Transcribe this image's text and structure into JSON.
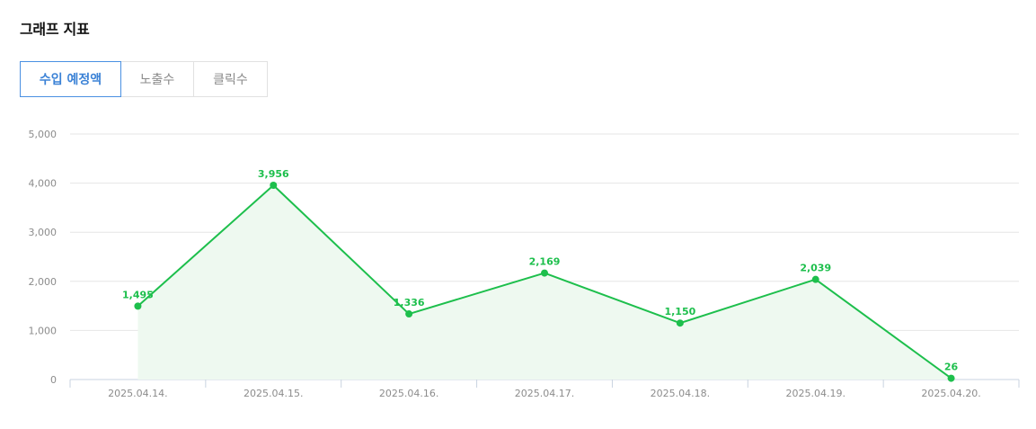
{
  "header": {
    "title": "그래프 지표"
  },
  "tabs": [
    {
      "label": "수입 예정액",
      "active": true
    },
    {
      "label": "노출수",
      "active": false
    },
    {
      "label": "클릭수",
      "active": false
    }
  ],
  "colors": {
    "series": "#1dbf4c",
    "area_fill": "#eef9f0",
    "grid": "#e6e6e6",
    "axis_text": "#8c8c8c",
    "tab_active": "#4a90e2"
  },
  "chart_data": {
    "type": "line",
    "title": "",
    "xlabel": "",
    "ylabel": "",
    "categories": [
      "2025.04.14.",
      "2025.04.15.",
      "2025.04.16.",
      "2025.04.17.",
      "2025.04.18.",
      "2025.04.19.",
      "2025.04.20."
    ],
    "series": [
      {
        "values": [
          1495,
          3956,
          1336,
          2169,
          1150,
          2039,
          26
        ],
        "labels": [
          "1,495",
          "3,956",
          "1,336",
          "2,169",
          "1,150",
          "2,039",
          "26"
        ]
      }
    ],
    "ylim": [
      0,
      5000
    ],
    "yticks": [
      0,
      1000,
      2000,
      3000,
      4000,
      5000
    ],
    "ytick_labels": [
      "0",
      "1,000",
      "2,000",
      "3,000",
      "4,000",
      "5,000"
    ],
    "grid": true,
    "area_fill": true,
    "legend": "none"
  }
}
